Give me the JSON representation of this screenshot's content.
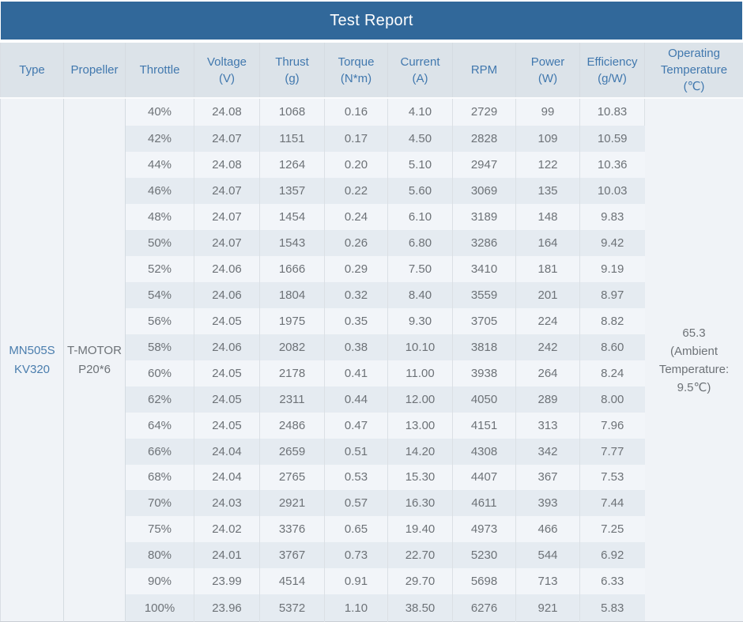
{
  "title": "Test Report",
  "columns": [
    {
      "id": "type",
      "label": "Type",
      "unit": ""
    },
    {
      "id": "propeller",
      "label": "Propeller",
      "unit": ""
    },
    {
      "id": "throttle",
      "label": "Throttle",
      "unit": ""
    },
    {
      "id": "voltage",
      "label": "Voltage",
      "unit": "(V)"
    },
    {
      "id": "thrust",
      "label": "Thrust",
      "unit": "(g)"
    },
    {
      "id": "torque",
      "label": "Torque",
      "unit": "(N*m)"
    },
    {
      "id": "current",
      "label": "Current",
      "unit": "(A)"
    },
    {
      "id": "rpm",
      "label": "RPM",
      "unit": ""
    },
    {
      "id": "power",
      "label": "Power",
      "unit": "(W)"
    },
    {
      "id": "efficiency",
      "label": "Efficiency",
      "unit": "(g/W)"
    },
    {
      "id": "operating_temperature",
      "label": "Operating Temperature",
      "unit": "(℃)"
    }
  ],
  "type": {
    "line1": "MN505S",
    "line2": "KV320"
  },
  "propeller": {
    "line1": "T-MOTOR",
    "line2": "P20*6"
  },
  "operating_temperature": {
    "value": "65.3",
    "note": "(Ambient Temperature: 9.5℃)"
  },
  "rows": [
    {
      "throttle": "40%",
      "voltage": "24.08",
      "thrust": "1068",
      "torque": "0.16",
      "current": "4.10",
      "rpm": "2729",
      "power": "99",
      "efficiency": "10.83"
    },
    {
      "throttle": "42%",
      "voltage": "24.07",
      "thrust": "1151",
      "torque": "0.17",
      "current": "4.50",
      "rpm": "2828",
      "power": "109",
      "efficiency": "10.59"
    },
    {
      "throttle": "44%",
      "voltage": "24.08",
      "thrust": "1264",
      "torque": "0.20",
      "current": "5.10",
      "rpm": "2947",
      "power": "122",
      "efficiency": "10.36"
    },
    {
      "throttle": "46%",
      "voltage": "24.07",
      "thrust": "1357",
      "torque": "0.22",
      "current": "5.60",
      "rpm": "3069",
      "power": "135",
      "efficiency": "10.03"
    },
    {
      "throttle": "48%",
      "voltage": "24.07",
      "thrust": "1454",
      "torque": "0.24",
      "current": "6.10",
      "rpm": "3189",
      "power": "148",
      "efficiency": "9.83"
    },
    {
      "throttle": "50%",
      "voltage": "24.07",
      "thrust": "1543",
      "torque": "0.26",
      "current": "6.80",
      "rpm": "3286",
      "power": "164",
      "efficiency": "9.42"
    },
    {
      "throttle": "52%",
      "voltage": "24.06",
      "thrust": "1666",
      "torque": "0.29",
      "current": "7.50",
      "rpm": "3410",
      "power": "181",
      "efficiency": "9.19"
    },
    {
      "throttle": "54%",
      "voltage": "24.06",
      "thrust": "1804",
      "torque": "0.32",
      "current": "8.40",
      "rpm": "3559",
      "power": "201",
      "efficiency": "8.97"
    },
    {
      "throttle": "56%",
      "voltage": "24.05",
      "thrust": "1975",
      "torque": "0.35",
      "current": "9.30",
      "rpm": "3705",
      "power": "224",
      "efficiency": "8.82"
    },
    {
      "throttle": "58%",
      "voltage": "24.06",
      "thrust": "2082",
      "torque": "0.38",
      "current": "10.10",
      "rpm": "3818",
      "power": "242",
      "efficiency": "8.60"
    },
    {
      "throttle": "60%",
      "voltage": "24.05",
      "thrust": "2178",
      "torque": "0.41",
      "current": "11.00",
      "rpm": "3938",
      "power": "264",
      "efficiency": "8.24"
    },
    {
      "throttle": "62%",
      "voltage": "24.05",
      "thrust": "2311",
      "torque": "0.44",
      "current": "12.00",
      "rpm": "4050",
      "power": "289",
      "efficiency": "8.00"
    },
    {
      "throttle": "64%",
      "voltage": "24.05",
      "thrust": "2486",
      "torque": "0.47",
      "current": "13.00",
      "rpm": "4151",
      "power": "313",
      "efficiency": "7.96"
    },
    {
      "throttle": "66%",
      "voltage": "24.04",
      "thrust": "2659",
      "torque": "0.51",
      "current": "14.20",
      "rpm": "4308",
      "power": "342",
      "efficiency": "7.77"
    },
    {
      "throttle": "68%",
      "voltage": "24.04",
      "thrust": "2765",
      "torque": "0.53",
      "current": "15.30",
      "rpm": "4407",
      "power": "367",
      "efficiency": "7.53"
    },
    {
      "throttle": "70%",
      "voltage": "24.03",
      "thrust": "2921",
      "torque": "0.57",
      "current": "16.30",
      "rpm": "4611",
      "power": "393",
      "efficiency": "7.44"
    },
    {
      "throttle": "75%",
      "voltage": "24.02",
      "thrust": "3376",
      "torque": "0.65",
      "current": "19.40",
      "rpm": "4973",
      "power": "466",
      "efficiency": "7.25"
    },
    {
      "throttle": "80%",
      "voltage": "24.01",
      "thrust": "3767",
      "torque": "0.73",
      "current": "22.70",
      "rpm": "5230",
      "power": "544",
      "efficiency": "6.92"
    },
    {
      "throttle": "90%",
      "voltage": "23.99",
      "thrust": "4514",
      "torque": "0.91",
      "current": "29.70",
      "rpm": "5698",
      "power": "713",
      "efficiency": "6.33"
    },
    {
      "throttle": "100%",
      "voltage": "23.96",
      "thrust": "5372",
      "torque": "1.10",
      "current": "38.50",
      "rpm": "6276",
      "power": "921",
      "efficiency": "5.83"
    }
  ]
}
